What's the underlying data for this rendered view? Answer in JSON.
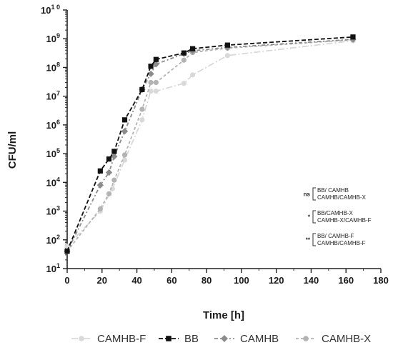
{
  "chart_data": {
    "type": "line",
    "xlabel": "Time [h]",
    "ylabel": "CFU/ml",
    "xlim": [
      0,
      180
    ],
    "x_ticks": [
      0,
      20,
      40,
      60,
      80,
      100,
      120,
      140,
      160,
      180
    ],
    "y_scale": "log",
    "ylim": [
      10,
      10000000000
    ],
    "y_tick_labels": [
      {
        "base": "10",
        "exp": "1"
      },
      {
        "base": "10",
        "exp": "2"
      },
      {
        "base": "10",
        "exp": "3"
      },
      {
        "base": "10",
        "exp": "4"
      },
      {
        "base": "10",
        "exp": "5"
      },
      {
        "base": "10",
        "exp": "6"
      },
      {
        "base": "10",
        "exp": "7"
      },
      {
        "base": "10",
        "exp": "8"
      },
      {
        "base": "10",
        "exp": "9"
      },
      {
        "base": "10",
        "exp": "1 0"
      }
    ],
    "grid": false,
    "legend_position": "bottom",
    "series": [
      {
        "name": "CAMHB-F",
        "color": "#d9d9d9",
        "marker": "circle",
        "dash": "long-dash-dot",
        "x": [
          0,
          19,
          26,
          33,
          43,
          48,
          51,
          67,
          72,
          92,
          164
        ],
        "y": [
          60,
          1000,
          6000,
          60000,
          1500000,
          15000000,
          15000000,
          28000000,
          55000000,
          260000000,
          850000000
        ]
      },
      {
        "name": "BB",
        "color": "#111111",
        "marker": "square",
        "dash": "dashed",
        "x": [
          0,
          19,
          24,
          27,
          33,
          43,
          48,
          51,
          67,
          72,
          92,
          164
        ],
        "y": [
          40,
          25000,
          65000,
          120000,
          1500000,
          17000000,
          110000000,
          190000000,
          320000000,
          450000000,
          600000000,
          1150000000
        ]
      },
      {
        "name": "CAMHB",
        "color": "#8c8c8c",
        "marker": "diamond",
        "dash": "dash-dot",
        "x": [
          0,
          19,
          24,
          27,
          33,
          43,
          48,
          51,
          67,
          72,
          92,
          164
        ],
        "y": [
          40,
          8000,
          22000,
          80000,
          600000,
          17000000,
          60000000,
          130000000,
          300000000,
          380000000,
          500000000,
          950000000
        ]
      },
      {
        "name": "CAMHB-X",
        "color": "#b3b3b3",
        "marker": "circle",
        "dash": "short-dash",
        "x": [
          0,
          19,
          24,
          27,
          33,
          43,
          48,
          51,
          67,
          72,
          92,
          164
        ],
        "y": [
          40,
          1200,
          4000,
          12000,
          90000,
          3500000,
          30000000,
          30000000,
          180000000,
          330000000,
          470000000,
          920000000
        ]
      }
    ],
    "annotations": [
      {
        "marker": "ns",
        "lines": [
          "BB/ CAMHB",
          "CAMHB/CAMHB-X"
        ]
      },
      {
        "marker": "*",
        "lines": [
          "BB/CAMHB-X",
          "CAMHB-X/CAMHB-F"
        ]
      },
      {
        "marker": "**",
        "lines": [
          "BB/ CAMHB-F",
          "CAMHB/CAMHB-F"
        ]
      }
    ]
  }
}
